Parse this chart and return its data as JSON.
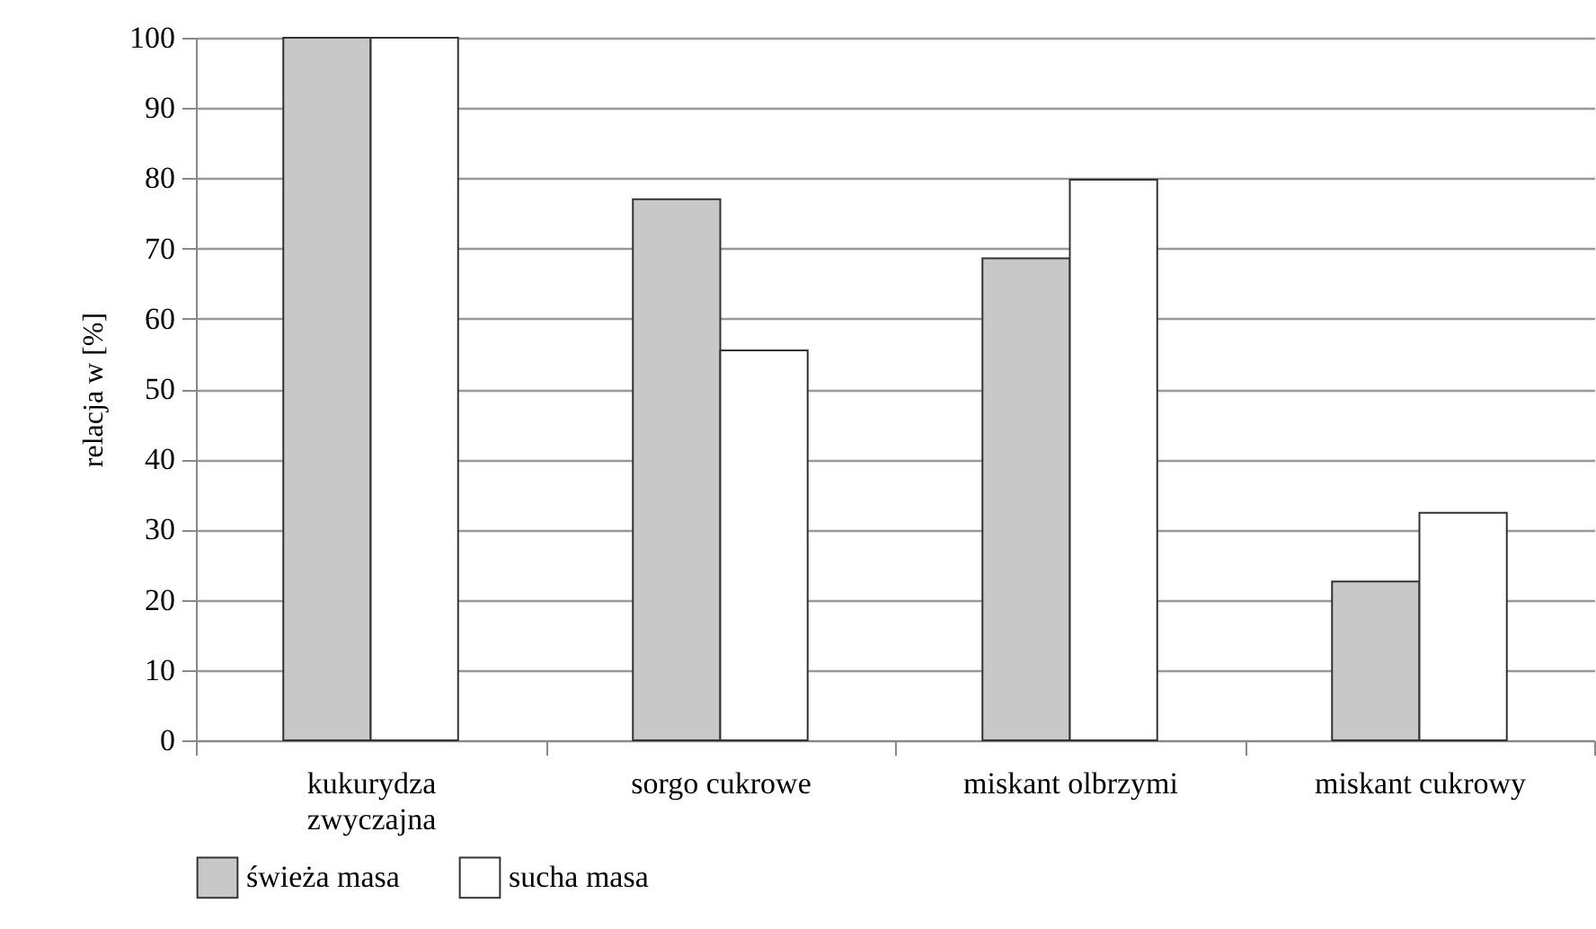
{
  "chart_data": {
    "type": "bar",
    "ylabel": "relacja w [%]",
    "categories": [
      "kukurydza zwyczajna",
      "sorgo cukrowe",
      "miskant olbrzymi",
      "miskant cukrowy"
    ],
    "series": [
      {
        "name": "świeża masa",
        "color": "#c8c8c8",
        "values": [
          100,
          77.0,
          68.6,
          22.6
        ]
      },
      {
        "name": "sucha masa",
        "color": "#ffffff",
        "values": [
          100,
          55.5,
          79.8,
          32.4
        ]
      }
    ],
    "ylim": [
      0,
      100
    ],
    "yticks": [
      0,
      10,
      20,
      30,
      40,
      50,
      60,
      70,
      80,
      90,
      100
    ],
    "grid": "y",
    "legend": "bottom"
  }
}
